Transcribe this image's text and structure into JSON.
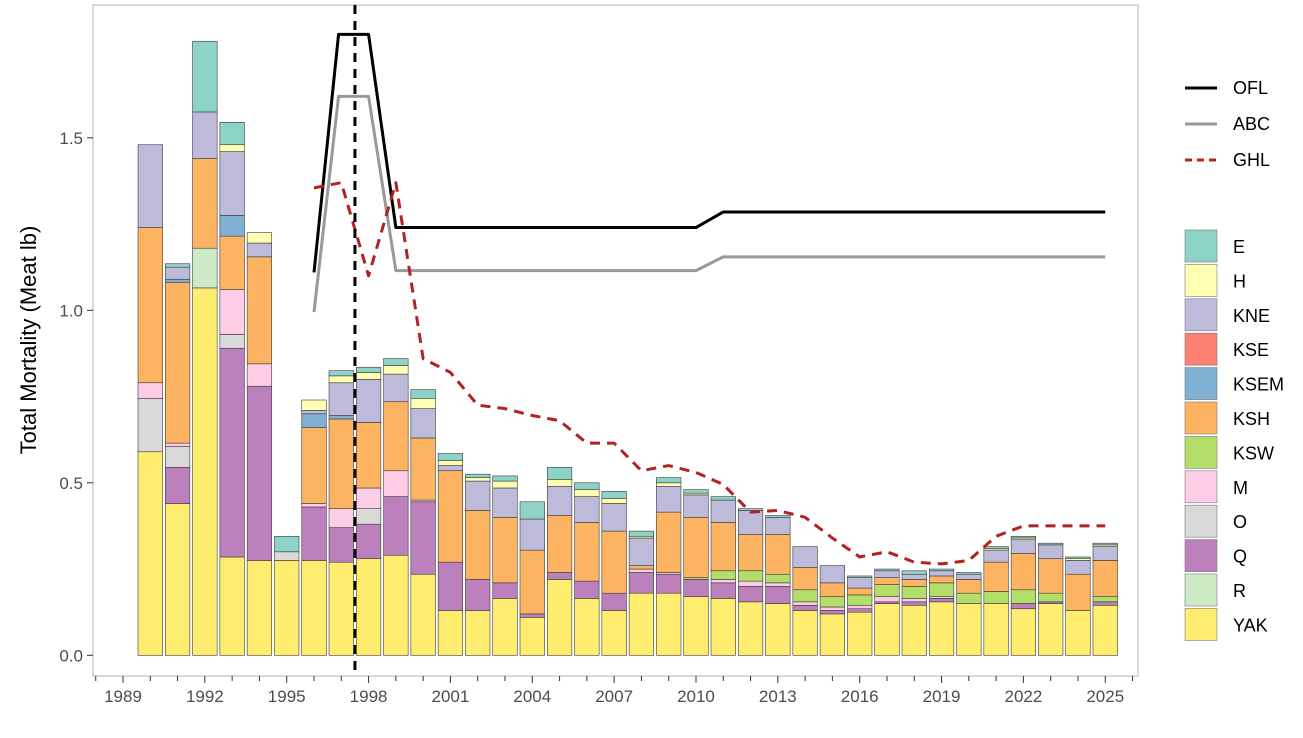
{
  "chart_data": {
    "type": "bar",
    "ylabel": "Total Mortality (Meat lb)",
    "ylim": [
      -0.06,
      1.885
    ],
    "xlim": [
      1987.9,
      1990.0
    ],
    "x_ticks": [
      1989,
      1992,
      1995,
      1998,
      2001,
      2004,
      2007,
      2010,
      2013,
      2016,
      2019,
      2022,
      2025
    ],
    "y_ticks": [
      0.0,
      0.5,
      1.0,
      1.5
    ],
    "y_tick_labels": [
      "0.0",
      "0.5",
      "1.0",
      "1.5"
    ],
    "vline_year": 1997.5,
    "stack_order": [
      "YAK",
      "R",
      "Q",
      "O",
      "M",
      "KSW",
      "KSH",
      "KSEM",
      "KSE",
      "KNE",
      "H",
      "E"
    ],
    "legend_order": [
      "E",
      "H",
      "KNE",
      "KSE",
      "KSEM",
      "KSH",
      "KSW",
      "M",
      "O",
      "Q",
      "R",
      "YAK"
    ],
    "colors": {
      "E": "#8DD3C7",
      "H": "#FFFFB3",
      "KNE": "#BEBADA",
      "KSE": "#FB8072",
      "KSEM": "#80B1D3",
      "KSH": "#FDB462",
      "KSW": "#B3DE69",
      "M": "#FCCDE5",
      "O": "#D9D9D9",
      "Q": "#BC80BD",
      "R": "#CCEBC5",
      "YAK": "#FFED6F"
    },
    "bars": [
      {
        "year": 1990,
        "YAK": 0.59,
        "O": 0.155,
        "M": 0.045,
        "KSH": 0.45,
        "KNE": 0.24
      },
      {
        "year": 1991,
        "YAK": 0.44,
        "Q": 0.105,
        "O": 0.06,
        "M": 0.01,
        "KSH": 0.465,
        "KSEM": 0.01,
        "E": 0.01,
        "KNE": 0.035
      },
      {
        "year": 1992,
        "YAK": 1.065,
        "R": 0.115,
        "KSH": 0.26,
        "KNE": 0.135,
        "E": 0.205
      },
      {
        "year": 1993,
        "YAK": 0.285,
        "Q": 0.605,
        "O": 0.04,
        "M": 0.13,
        "KSH": 0.155,
        "KSEM": 0.06,
        "KNE": 0.185,
        "H": 0.02,
        "E": 0.065
      },
      {
        "year": 1994,
        "YAK": 0.275,
        "Q": 0.505,
        "M": 0.065,
        "KSH": 0.31,
        "KNE": 0.04,
        "H": 0.03
      },
      {
        "year": 1995,
        "YAK": 0.275,
        "O": 0.025,
        "E": 0.045
      },
      {
        "year": 1996,
        "YAK": 0.275,
        "Q": 0.155,
        "M": 0.01,
        "KSH": 0.22,
        "KSEM": 0.04,
        "KNE": 0.01,
        "H": 0.03
      },
      {
        "year": 1997,
        "YAK": 0.27,
        "Q": 0.1,
        "M": 0.055,
        "KSH": 0.26,
        "KSEM": 0.01,
        "KNE": 0.095,
        "H": 0.02,
        "E": 0.015
      },
      {
        "year": 1998,
        "YAK": 0.28,
        "Q": 0.1,
        "O": 0.045,
        "M": 0.06,
        "KSH": 0.19,
        "KNE": 0.125,
        "H": 0.02,
        "E": 0.015
      },
      {
        "year": 1999,
        "YAK": 0.29,
        "Q": 0.17,
        "M": 0.075,
        "KSH": 0.2,
        "KNE": 0.08,
        "H": 0.025,
        "E": 0.02
      },
      {
        "year": 2000,
        "YAK": 0.235,
        "Q": 0.21,
        "M": 0.005,
        "KSH": 0.18,
        "KNE": 0.085,
        "H": 0.03,
        "E": 0.025
      },
      {
        "year": 2001,
        "YAK": 0.13,
        "Q": 0.14,
        "KSH": 0.265,
        "KNE": 0.015,
        "H": 0.015,
        "E": 0.02
      },
      {
        "year": 2002,
        "YAK": 0.13,
        "Q": 0.09,
        "KSH": 0.2,
        "KNE": 0.085,
        "H": 0.01,
        "E": 0.01
      },
      {
        "year": 2003,
        "YAK": 0.165,
        "Q": 0.045,
        "KSH": 0.19,
        "KNE": 0.085,
        "H": 0.02,
        "E": 0.015
      },
      {
        "year": 2004,
        "YAK": 0.11,
        "Q": 0.01,
        "KSH": 0.185,
        "KNE": 0.09,
        "E": 0.05
      },
      {
        "year": 2005,
        "YAK": 0.22,
        "Q": 0.02,
        "KSH": 0.165,
        "KNE": 0.085,
        "H": 0.02,
        "E": 0.035
      },
      {
        "year": 2006,
        "YAK": 0.165,
        "Q": 0.05,
        "KSH": 0.17,
        "KNE": 0.075,
        "H": 0.02,
        "E": 0.02
      },
      {
        "year": 2007,
        "YAK": 0.13,
        "Q": 0.05,
        "KSH": 0.18,
        "KNE": 0.08,
        "H": 0.015,
        "E": 0.02
      },
      {
        "year": 2008,
        "YAK": 0.18,
        "Q": 0.06,
        "M": 0.01,
        "KSH": 0.01,
        "KNE": 0.08,
        "H": 0.005,
        "E": 0.015
      },
      {
        "year": 2009,
        "YAK": 0.18,
        "Q": 0.055,
        "M": 0.005,
        "KSH": 0.175,
        "KNE": 0.075,
        "H": 0.01,
        "E": 0.015
      },
      {
        "year": 2010,
        "YAK": 0.17,
        "Q": 0.05,
        "KSW": 0.005,
        "KSH": 0.175,
        "KNE": 0.065,
        "H": 0.005,
        "E": 0.01
      },
      {
        "year": 2011,
        "YAK": 0.165,
        "Q": 0.045,
        "M": 0.01,
        "KSW": 0.025,
        "KSH": 0.14,
        "KNE": 0.065,
        "E": 0.01
      },
      {
        "year": 2012,
        "YAK": 0.155,
        "Q": 0.045,
        "M": 0.015,
        "KSW": 0.03,
        "KSH": 0.105,
        "KNE": 0.07,
        "E": 0.005
      },
      {
        "year": 2013,
        "YAK": 0.15,
        "Q": 0.05,
        "M": 0.01,
        "KSW": 0.025,
        "KSH": 0.115,
        "KNE": 0.05,
        "E": 0.005
      },
      {
        "year": 2014,
        "YAK": 0.13,
        "Q": 0.015,
        "M": 0.01,
        "KSW": 0.035,
        "KSH": 0.065,
        "KNE": 0.06
      },
      {
        "year": 2015,
        "YAK": 0.12,
        "Q": 0.01,
        "M": 0.01,
        "KSW": 0.03,
        "KSH": 0.04,
        "KNE": 0.05
      },
      {
        "year": 2016,
        "YAK": 0.125,
        "Q": 0.01,
        "M": 0.01,
        "KSW": 0.03,
        "KSH": 0.02,
        "KNE": 0.03,
        "E": 0.005
      },
      {
        "year": 2017,
        "YAK": 0.15,
        "Q": 0.005,
        "M": 0.015,
        "KSW": 0.035,
        "KSH": 0.02,
        "KNE": 0.02,
        "E": 0.005
      },
      {
        "year": 2018,
        "YAK": 0.145,
        "Q": 0.01,
        "M": 0.01,
        "KSW": 0.035,
        "KSH": 0.02,
        "KNE": 0.015,
        "E": 0.01
      },
      {
        "year": 2019,
        "YAK": 0.155,
        "Q": 0.01,
        "M": 0.005,
        "KSW": 0.04,
        "KSH": 0.02,
        "KNE": 0.015,
        "E": 0.005
      },
      {
        "year": 2020,
        "YAK": 0.15,
        "KSW": 0.03,
        "KSH": 0.04,
        "KNE": 0.015,
        "E": 0.005
      },
      {
        "year": 2021,
        "YAK": 0.15,
        "KSW": 0.035,
        "KSH": 0.085,
        "KNE": 0.035,
        "H": 0.005,
        "E": 0.005
      },
      {
        "year": 2022,
        "YAK": 0.135,
        "Q": 0.015,
        "KSW": 0.04,
        "KSH": 0.105,
        "KNE": 0.04,
        "H": 0.005,
        "E": 0.005
      },
      {
        "year": 2023,
        "YAK": 0.15,
        "Q": 0.005,
        "KSW": 0.025,
        "KSH": 0.1,
        "KNE": 0.04,
        "E": 0.005
      },
      {
        "year": 2024,
        "YAK": 0.13,
        "KSH": 0.105,
        "KNE": 0.04,
        "H": 0.005,
        "E": 0.005
      },
      {
        "year": 2025,
        "YAK": 0.145,
        "Q": 0.01,
        "KSW": 0.015,
        "KSH": 0.105,
        "KNE": 0.04,
        "H": 0.005,
        "E": 0.005
      }
    ],
    "series": [
      {
        "name": "OFL",
        "color": "#000000",
        "dash": "solid",
        "points": [
          [
            1996,
            1.11
          ],
          [
            1996.9,
            1.8
          ],
          [
            1998,
            1.8
          ],
          [
            1999,
            1.24
          ],
          [
            2010,
            1.24
          ],
          [
            2011,
            1.285
          ],
          [
            2025,
            1.285
          ]
        ]
      },
      {
        "name": "ABC",
        "color": "#999999",
        "dash": "solid",
        "points": [
          [
            1996,
            0.995
          ],
          [
            1996.9,
            1.62
          ],
          [
            1998,
            1.62
          ],
          [
            1999,
            1.115
          ],
          [
            2010,
            1.115
          ],
          [
            2011,
            1.155
          ],
          [
            2025,
            1.155
          ]
        ]
      },
      {
        "name": "GHL",
        "color": "#B22222",
        "dash": "dashed",
        "points": [
          [
            1996,
            1.355
          ],
          [
            1997,
            1.37
          ],
          [
            1998,
            1.1
          ],
          [
            1999,
            1.37
          ],
          [
            2000,
            0.86
          ],
          [
            2001,
            0.82
          ],
          [
            2002,
            0.725
          ],
          [
            2003,
            0.715
          ],
          [
            2004,
            0.695
          ],
          [
            2005,
            0.68
          ],
          [
            2006,
            0.615
          ],
          [
            2007,
            0.615
          ],
          [
            2008,
            0.535
          ],
          [
            2009,
            0.55
          ],
          [
            2010,
            0.53
          ],
          [
            2011,
            0.495
          ],
          [
            2012,
            0.415
          ],
          [
            2013,
            0.42
          ],
          [
            2014,
            0.4
          ],
          [
            2015,
            0.34
          ],
          [
            2016,
            0.285
          ],
          [
            2017,
            0.3
          ],
          [
            2018,
            0.27
          ],
          [
            2019,
            0.265
          ],
          [
            2020,
            0.275
          ],
          [
            2021,
            0.345
          ],
          [
            2022,
            0.375
          ],
          [
            2023,
            0.375
          ],
          [
            2024,
            0.375
          ],
          [
            2025,
            0.375
          ]
        ]
      }
    ]
  }
}
